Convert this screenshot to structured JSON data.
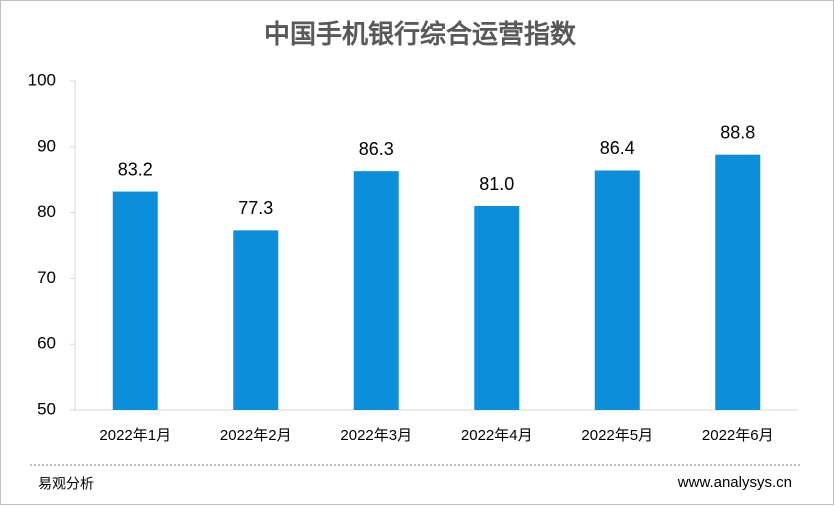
{
  "chart_data": {
    "type": "bar",
    "title": "中国手机银行综合运营指数",
    "categories": [
      "2022年1月",
      "2022年2月",
      "2022年3月",
      "2022年4月",
      "2022年5月",
      "2022年6月"
    ],
    "values": [
      83.2,
      77.3,
      86.3,
      81.0,
      86.4,
      88.8
    ],
    "value_labels": [
      "83.2",
      "77.3",
      "86.3",
      "81.0",
      "86.4",
      "88.8"
    ],
    "color": "#0b8fdb",
    "ylim": [
      50,
      100
    ],
    "yticks": [
      50,
      60,
      70,
      80,
      90,
      100
    ],
    "grid": false,
    "source": "易观分析",
    "website": "www.analysys.cn"
  }
}
